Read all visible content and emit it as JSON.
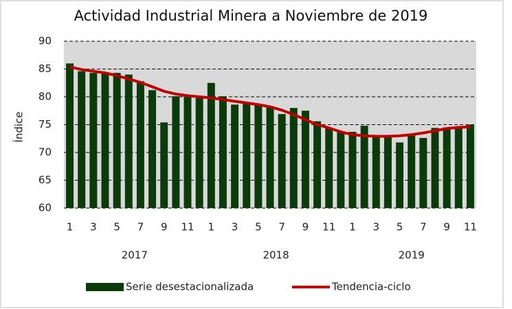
{
  "chart_data": {
    "type": "bar",
    "title": "Actividad Industrial Minera a Noviembre de 2019",
    "y_label": "Índice",
    "categories": [
      "1",
      null,
      "3",
      null,
      "5",
      null,
      "7",
      null,
      "9",
      null,
      "11",
      null,
      "1",
      null,
      "3",
      null,
      "5",
      null,
      "7",
      null,
      "9",
      null,
      "11",
      null,
      "1",
      null,
      "3",
      null,
      "5",
      null,
      "7",
      null,
      "9",
      null,
      "11"
    ],
    "year_labels": [
      "2017",
      "2018",
      "2019"
    ],
    "series": [
      {
        "name": "Serie desestacionalizada",
        "type": "bar",
        "color": "#0b3b0b",
        "values": [
          86.0,
          84.6,
          84.3,
          84.4,
          84.3,
          84.0,
          82.8,
          81.2,
          75.4,
          80.1,
          80.0,
          79.8,
          82.5,
          80.1,
          78.6,
          78.9,
          78.5,
          78.3,
          76.9,
          78.0,
          77.5,
          75.6,
          74.4,
          73.7,
          73.7,
          74.8,
          73.0,
          73.1,
          71.8,
          73.2,
          72.6,
          74.4,
          74.5,
          74.3,
          75.0
        ]
      },
      {
        "name": "Tendencia-ciclo",
        "type": "line",
        "color": "#c00000",
        "values": [
          85.4,
          84.9,
          84.6,
          84.3,
          83.8,
          83.2,
          82.6,
          81.8,
          81.0,
          80.5,
          80.2,
          80.0,
          79.8,
          79.5,
          79.2,
          78.9,
          78.6,
          78.2,
          77.6,
          76.8,
          75.9,
          75.0,
          74.4,
          73.7,
          73.2,
          73.0,
          72.9,
          72.9,
          73.0,
          73.2,
          73.5,
          73.9,
          74.3,
          74.5,
          74.6
        ]
      }
    ],
    "ylim": [
      60,
      90
    ],
    "yticks": [
      60,
      65,
      70,
      75,
      80,
      85,
      90
    ],
    "grid": true,
    "legend": "bottom"
  }
}
